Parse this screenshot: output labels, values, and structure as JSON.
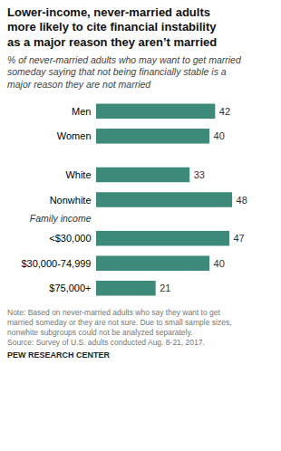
{
  "chart_data": {
    "type": "bar",
    "orientation": "horizontal",
    "title": "Lower-income, never-married adults\nmore likely to cite financial instability\nas a major reason they aren’t married",
    "subtitle": "% of never-married adults who may want to get married\nsomeday saying that not being financially stable is a\nmajor reason they are not married",
    "categories": [
      "Men",
      "Women",
      "White",
      "Nonwhite",
      "<$30,000",
      "$30,000-74,999",
      "$75,000+"
    ],
    "values": [
      42,
      40,
      33,
      48,
      47,
      40,
      21
    ],
    "color": "#3d8a7a",
    "xlim": [
      0,
      55
    ],
    "xticks": [],
    "data_labels": true,
    "tick_labels": "y",
    "grid": false,
    "annotations": [
      "Family income"
    ],
    "note": "Note: Based on never-married adults who say they want to get\nmarried someday or they are not sure. Due to small sample sizes,\nnonwhite subgroups could not be analyzed separately.\nSource: Survey of U.S. adults conducted Aug. 8-21, 2017.",
    "source": "PEW RESEARCH CENTER"
  }
}
